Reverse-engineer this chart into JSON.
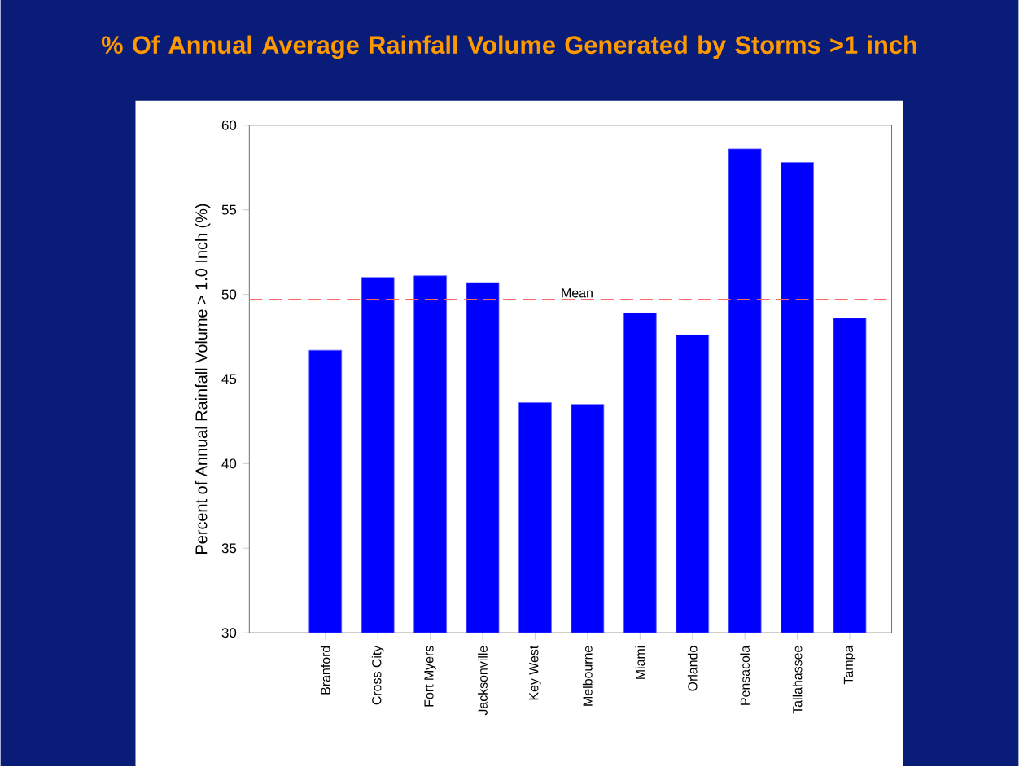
{
  "chart_data": {
    "type": "bar",
    "title": "% Of Annual Average Rainfall Volume Generated by Storms >1 inch",
    "ylabel": "Percent of Annual Rainfall Volume > 1.0 Inch (%)",
    "categories": [
      "Branford",
      "Cross City",
      "Fort Myers",
      "Jacksonville",
      "Key West",
      "Melbourne",
      "Miami",
      "Orlando",
      "Pensacola",
      "Tallahassee",
      "Tampa"
    ],
    "values": [
      46.7,
      51.0,
      51.1,
      50.7,
      43.6,
      43.5,
      48.9,
      47.6,
      58.6,
      57.8,
      48.6
    ],
    "color": "#0000ff",
    "ylim": [
      30,
      60
    ],
    "yticks": [
      30,
      35,
      40,
      45,
      50,
      55,
      60
    ],
    "ref_lines": [
      {
        "axis": "y",
        "value": 49.7,
        "label": "Mean",
        "color": "#ff6666",
        "line_style": "dashed"
      }
    ]
  }
}
